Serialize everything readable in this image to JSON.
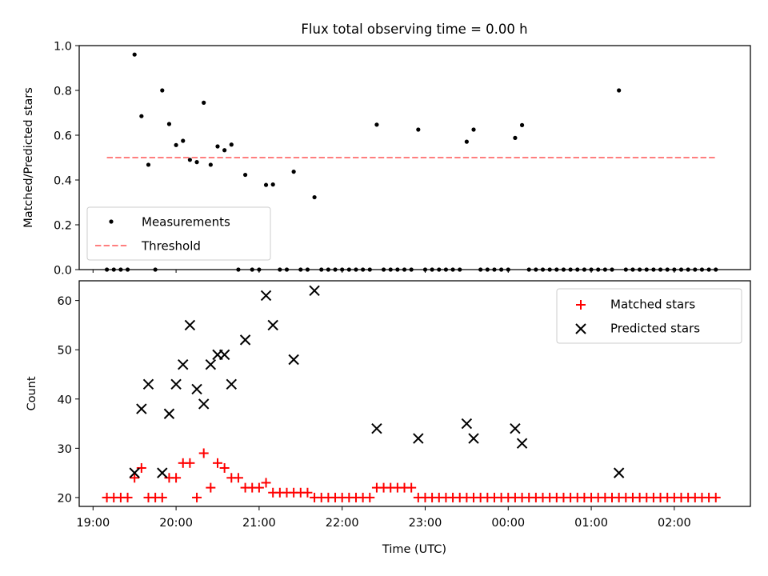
{
  "colors": {
    "measurement": "#000000",
    "threshold": "#ff7f7f",
    "matched": "#ff0000",
    "predicted": "#000000"
  },
  "chart_data": [
    {
      "type": "scatter",
      "title": "Flux total observing time = 0.00 h",
      "xlabel": "",
      "ylabel": "Matched/Predicted stars",
      "x_axis": "time",
      "xlim": [
        "18:50",
        "02:55"
      ],
      "ylim": [
        0.0,
        1.0
      ],
      "y_ticks": [
        "0.0",
        "0.2",
        "0.4",
        "0.6",
        "0.8",
        "1.0"
      ],
      "x_ticks_minor_only": true,
      "legend": {
        "placement": "lower-left",
        "entries": [
          "Measurements",
          "Threshold"
        ]
      },
      "threshold": {
        "name": "Threshold",
        "value": 0.5,
        "x": [
          "19:10",
          "02:30"
        ]
      },
      "series": [
        {
          "name": "Measurements",
          "points": [
            [
              "19:10",
              0
            ],
            [
              "19:15",
              0
            ],
            [
              "19:20",
              0
            ],
            [
              "19:25",
              0
            ],
            [
              "19:30",
              0.96
            ],
            [
              "19:35",
              0.685
            ],
            [
              "19:40",
              0.468
            ],
            [
              "19:45",
              0
            ],
            [
              "19:50",
              0.8
            ],
            [
              "19:55",
              0.65
            ],
            [
              "20:00",
              0.556
            ],
            [
              "20:05",
              0.575
            ],
            [
              "20:10",
              0.49
            ],
            [
              "20:15",
              0.48
            ],
            [
              "20:20",
              0.745
            ],
            [
              "20:25",
              0.468
            ],
            [
              "20:30",
              0.55
            ],
            [
              "20:35",
              0.533
            ],
            [
              "20:40",
              0.558
            ],
            [
              "20:45",
              0
            ],
            [
              "20:50",
              0.423
            ],
            [
              "20:55",
              0
            ],
            [
              "21:00",
              0
            ],
            [
              "21:05",
              0.378
            ],
            [
              "21:10",
              0.38
            ],
            [
              "21:15",
              0
            ],
            [
              "21:20",
              0
            ],
            [
              "21:25",
              0.437
            ],
            [
              "21:30",
              0
            ],
            [
              "21:35",
              0
            ],
            [
              "21:40",
              0.323
            ],
            [
              "21:45",
              0
            ],
            [
              "21:50",
              0
            ],
            [
              "21:55",
              0
            ],
            [
              "22:00",
              0
            ],
            [
              "22:05",
              0
            ],
            [
              "22:10",
              0
            ],
            [
              "22:15",
              0
            ],
            [
              "22:20",
              0
            ],
            [
              "22:25",
              0.647
            ],
            [
              "22:30",
              0
            ],
            [
              "22:35",
              0
            ],
            [
              "22:40",
              0
            ],
            [
              "22:45",
              0
            ],
            [
              "22:50",
              0
            ],
            [
              "22:55",
              0.625
            ],
            [
              "23:00",
              0
            ],
            [
              "23:05",
              0
            ],
            [
              "23:10",
              0
            ],
            [
              "23:15",
              0
            ],
            [
              "23:20",
              0
            ],
            [
              "23:25",
              0
            ],
            [
              "23:30",
              0.571
            ],
            [
              "23:35",
              0.625
            ],
            [
              "23:40",
              0
            ],
            [
              "23:45",
              0
            ],
            [
              "23:50",
              0
            ],
            [
              "23:55",
              0
            ],
            [
              "00:00",
              0
            ],
            [
              "00:05",
              0.588
            ],
            [
              "00:10",
              0.645
            ],
            [
              "00:15",
              0
            ],
            [
              "00:20",
              0
            ],
            [
              "00:25",
              0
            ],
            [
              "00:30",
              0
            ],
            [
              "00:35",
              0
            ],
            [
              "00:40",
              0
            ],
            [
              "00:45",
              0
            ],
            [
              "00:50",
              0
            ],
            [
              "00:55",
              0
            ],
            [
              "01:00",
              0
            ],
            [
              "01:05",
              0
            ],
            [
              "01:10",
              0
            ],
            [
              "01:15",
              0
            ],
            [
              "01:20",
              0.8
            ],
            [
              "01:25",
              0
            ],
            [
              "01:30",
              0
            ],
            [
              "01:35",
              0
            ],
            [
              "01:40",
              0
            ],
            [
              "01:45",
              0
            ],
            [
              "01:50",
              0
            ],
            [
              "01:55",
              0
            ],
            [
              "02:00",
              0
            ],
            [
              "02:05",
              0
            ],
            [
              "02:10",
              0
            ],
            [
              "02:15",
              0
            ],
            [
              "02:20",
              0
            ],
            [
              "02:25",
              0
            ],
            [
              "02:30",
              0
            ]
          ]
        }
      ]
    },
    {
      "type": "scatter",
      "title": "",
      "xlabel": "Time (UTC)",
      "ylabel": "Count",
      "x_axis": "time",
      "xlim": [
        "18:50",
        "02:55"
      ],
      "ylim": [
        18.2,
        64
      ],
      "x_ticks": [
        "19:00",
        "20:00",
        "21:00",
        "22:00",
        "23:00",
        "00:00",
        "01:00",
        "02:00"
      ],
      "y_ticks": [
        "20",
        "30",
        "40",
        "50",
        "60"
      ],
      "legend": {
        "placement": "top-right",
        "entries": [
          "Matched stars",
          "Predicted stars"
        ]
      },
      "series": [
        {
          "name": "Matched stars",
          "marker": "plus",
          "points": [
            [
              "19:10",
              20
            ],
            [
              "19:15",
              20
            ],
            [
              "19:20",
              20
            ],
            [
              "19:25",
              20
            ],
            [
              "19:30",
              24
            ],
            [
              "19:35",
              26
            ],
            [
              "19:40",
              20
            ],
            [
              "19:45",
              20
            ],
            [
              "19:50",
              20
            ],
            [
              "19:55",
              24
            ],
            [
              "20:00",
              24
            ],
            [
              "20:05",
              27
            ],
            [
              "20:10",
              27
            ],
            [
              "20:15",
              20
            ],
            [
              "20:20",
              29
            ],
            [
              "20:25",
              22
            ],
            [
              "20:30",
              27
            ],
            [
              "20:35",
              26
            ],
            [
              "20:40",
              24
            ],
            [
              "20:45",
              24
            ],
            [
              "20:50",
              22
            ],
            [
              "20:55",
              22
            ],
            [
              "21:00",
              22
            ],
            [
              "21:05",
              23
            ],
            [
              "21:10",
              21
            ],
            [
              "21:15",
              21
            ],
            [
              "21:20",
              21
            ],
            [
              "21:25",
              21
            ],
            [
              "21:30",
              21
            ],
            [
              "21:35",
              21
            ],
            [
              "21:40",
              20
            ],
            [
              "21:45",
              20
            ],
            [
              "21:50",
              20
            ],
            [
              "21:55",
              20
            ],
            [
              "22:00",
              20
            ],
            [
              "22:05",
              20
            ],
            [
              "22:10",
              20
            ],
            [
              "22:15",
              20
            ],
            [
              "22:20",
              20
            ],
            [
              "22:25",
              22
            ],
            [
              "22:30",
              22
            ],
            [
              "22:35",
              22
            ],
            [
              "22:40",
              22
            ],
            [
              "22:45",
              22
            ],
            [
              "22:50",
              22
            ],
            [
              "22:55",
              20
            ],
            [
              "23:00",
              20
            ],
            [
              "23:05",
              20
            ],
            [
              "23:10",
              20
            ],
            [
              "23:15",
              20
            ],
            [
              "23:20",
              20
            ],
            [
              "23:25",
              20
            ],
            [
              "23:30",
              20
            ],
            [
              "23:35",
              20
            ],
            [
              "23:40",
              20
            ],
            [
              "23:45",
              20
            ],
            [
              "23:50",
              20
            ],
            [
              "23:55",
              20
            ],
            [
              "00:00",
              20
            ],
            [
              "00:05",
              20
            ],
            [
              "00:10",
              20
            ],
            [
              "00:15",
              20
            ],
            [
              "00:20",
              20
            ],
            [
              "00:25",
              20
            ],
            [
              "00:30",
              20
            ],
            [
              "00:35",
              20
            ],
            [
              "00:40",
              20
            ],
            [
              "00:45",
              20
            ],
            [
              "00:50",
              20
            ],
            [
              "00:55",
              20
            ],
            [
              "01:00",
              20
            ],
            [
              "01:05",
              20
            ],
            [
              "01:10",
              20
            ],
            [
              "01:15",
              20
            ],
            [
              "01:20",
              20
            ],
            [
              "01:25",
              20
            ],
            [
              "01:30",
              20
            ],
            [
              "01:35",
              20
            ],
            [
              "01:40",
              20
            ],
            [
              "01:45",
              20
            ],
            [
              "01:50",
              20
            ],
            [
              "01:55",
              20
            ],
            [
              "02:00",
              20
            ],
            [
              "02:05",
              20
            ],
            [
              "02:10",
              20
            ],
            [
              "02:15",
              20
            ],
            [
              "02:20",
              20
            ],
            [
              "02:25",
              20
            ],
            [
              "02:30",
              20
            ]
          ]
        },
        {
          "name": "Predicted stars",
          "marker": "x",
          "points": [
            [
              "19:30",
              25
            ],
            [
              "19:35",
              38
            ],
            [
              "19:40",
              43
            ],
            [
              "19:50",
              25
            ],
            [
              "19:55",
              37
            ],
            [
              "20:00",
              43
            ],
            [
              "20:05",
              47
            ],
            [
              "20:10",
              55
            ],
            [
              "20:15",
              42
            ],
            [
              "20:20",
              39
            ],
            [
              "20:25",
              47
            ],
            [
              "20:30",
              49
            ],
            [
              "20:35",
              49
            ],
            [
              "20:40",
              43
            ],
            [
              "20:50",
              52
            ],
            [
              "21:05",
              61
            ],
            [
              "21:10",
              55
            ],
            [
              "21:25",
              48
            ],
            [
              "21:40",
              62
            ],
            [
              "22:25",
              34
            ],
            [
              "22:55",
              32
            ],
            [
              "23:30",
              35
            ],
            [
              "23:35",
              32
            ],
            [
              "00:05",
              34
            ],
            [
              "00:10",
              31
            ],
            [
              "01:20",
              25
            ]
          ]
        }
      ]
    }
  ]
}
